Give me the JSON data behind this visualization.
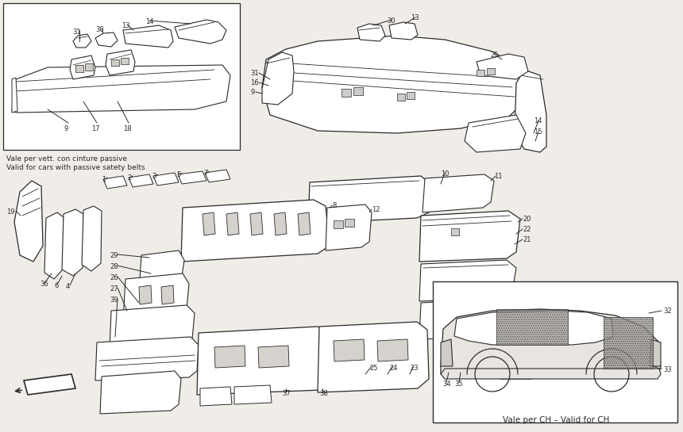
{
  "background_color": "#f0ede8",
  "line_color": "#2a2a2a",
  "white": "#ffffff",
  "note1_line1": "Vale per vett. con cinture passive",
  "note1_line2": "Valid for cars with passive satety belts",
  "note2": "Vale per CH – Valid for CH",
  "fig_width": 8.6,
  "fig_height": 5.45,
  "dpi": 100
}
